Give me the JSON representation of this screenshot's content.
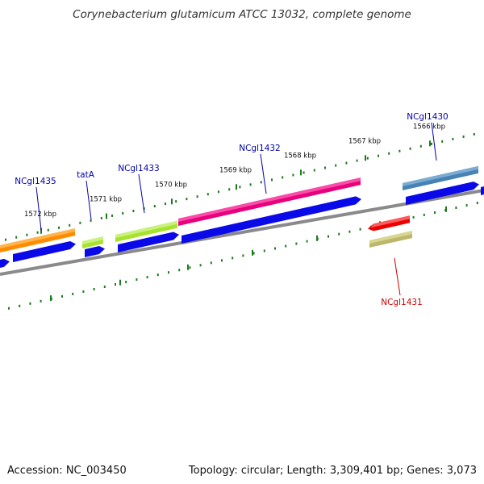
{
  "title": "Corynebacterium glutamicum ATCC 13032, complete genome",
  "footer": {
    "accession": "Accession: NC_003450",
    "summary": "Topology: circular; Length: 3,309,401 bp; Genes: 3,073"
  },
  "scale_labels": [
    "1572 kbp",
    "1571 kbp",
    "1570 kbp",
    "1569 kbp",
    "1568 kbp",
    "1567 kbp",
    "1566 kbp"
  ],
  "genes": [
    {
      "label": "NCgl1435",
      "color": "#0000aa"
    },
    {
      "label": "tatA",
      "color": "#0000aa"
    },
    {
      "label": "NCgl1433",
      "color": "#0000aa"
    },
    {
      "label": "NCgl1432",
      "color": "#0000aa"
    },
    {
      "label": "NCgl1430",
      "color": "#0000aa"
    },
    {
      "label": "NCgl1431",
      "color": "#cc0000"
    }
  ],
  "colors": {
    "backbone": "#8a8a8a",
    "ticks": "#1f7a1f",
    "cds": "#0a0ae8",
    "orange": "#ff8c00",
    "lime": "#a6e22e",
    "magenta": "#e8007c",
    "steel": "#4682b4",
    "red": "#ee0000",
    "khaki": "#bdb76b"
  }
}
